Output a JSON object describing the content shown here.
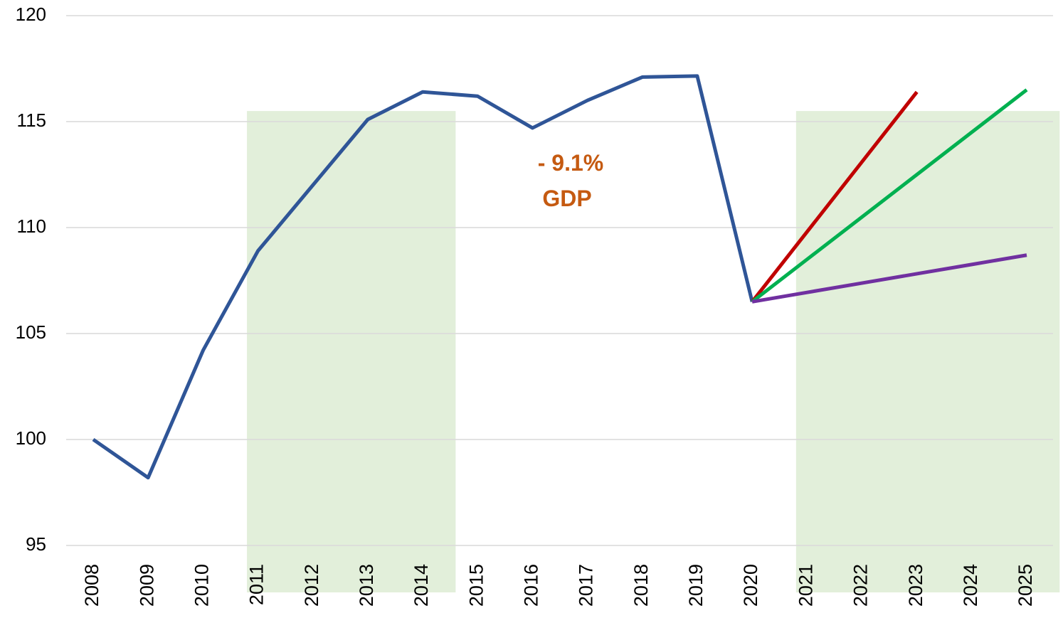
{
  "chart_data": {
    "type": "line",
    "categories": [
      "2008",
      "2009",
      "2010",
      "2011",
      "2012",
      "2013",
      "2014",
      "2015",
      "2016",
      "2017",
      "2018",
      "2019",
      "2020",
      "2021",
      "2022",
      "2023",
      "2024",
      "2025"
    ],
    "series": [
      {
        "color": "#2f5597",
        "values": [
          100,
          98.2,
          104.2,
          108.9,
          112,
          115.1,
          116.4,
          116.2,
          114.7,
          116,
          117.1,
          117.15,
          106.5,
          null,
          null,
          null,
          null,
          null
        ]
      },
      {
        "color": "#c00000",
        "values": [
          null,
          null,
          null,
          null,
          null,
          null,
          null,
          null,
          null,
          null,
          null,
          null,
          106.5,
          109.8,
          113.1,
          116.4,
          null,
          null
        ]
      },
      {
        "color": "#00b050",
        "values": [
          null,
          null,
          null,
          null,
          null,
          null,
          null,
          null,
          null,
          null,
          null,
          null,
          106.5,
          108.5,
          110.5,
          112.5,
          114.5,
          116.5
        ]
      },
      {
        "color": "#7030a0",
        "values": [
          null,
          null,
          null,
          null,
          null,
          null,
          null,
          null,
          null,
          null,
          null,
          null,
          106.5,
          106.94,
          107.38,
          107.82,
          108.26,
          108.7
        ]
      }
    ],
    "bands": [
      {
        "start": "2011",
        "end": "2014",
        "top": 115.5,
        "color": "#e2efda"
      },
      {
        "start": "2021",
        "end": "2025",
        "top": 115.5,
        "color": "#e2efda"
      }
    ],
    "annotations": [
      "- 9.1%",
      "GDP"
    ],
    "ylim": [
      95,
      120
    ],
    "yticks": [
      95,
      100,
      105,
      110,
      115,
      120
    ],
    "grid": true
  }
}
